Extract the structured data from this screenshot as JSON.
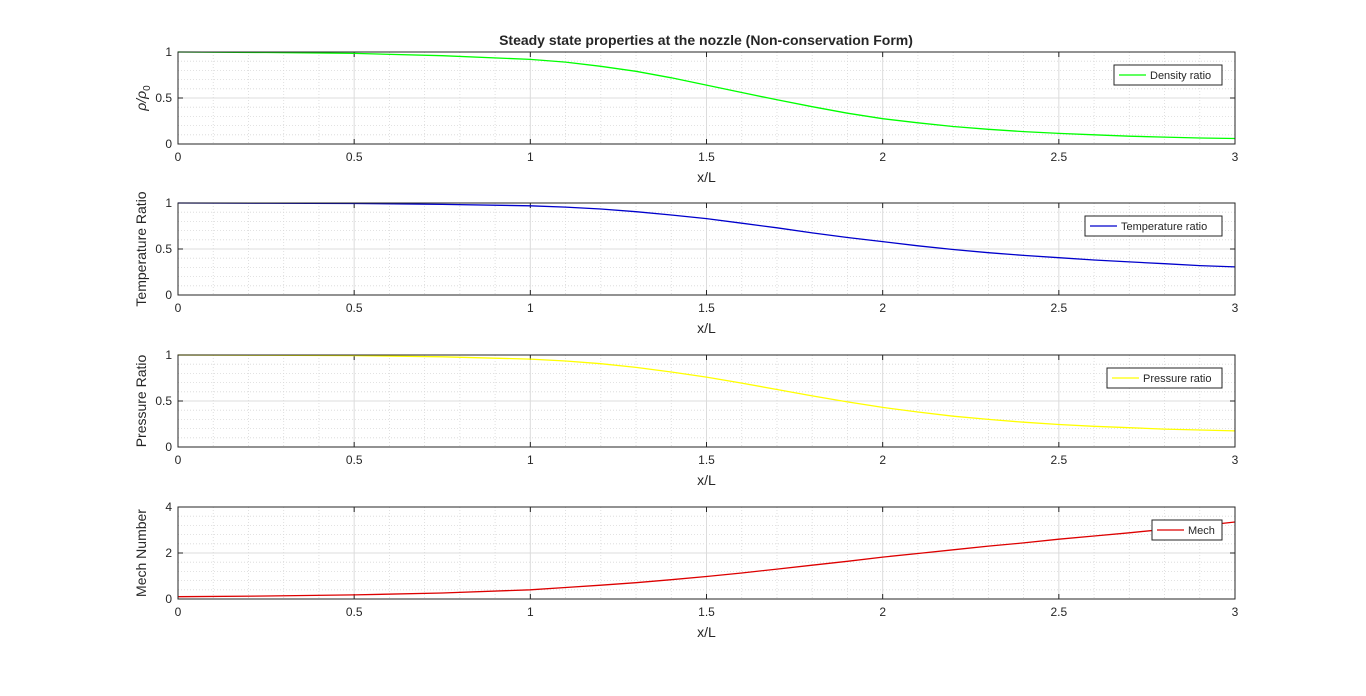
{
  "figure": {
    "title": "Steady state properties at the nozzle (Non-conservation Form)"
  },
  "chart_data": [
    {
      "type": "line",
      "xlabel": "x/L",
      "ylabel": "ρ/ρ",
      "ylabel_subscript": "0",
      "xlim": [
        0,
        3
      ],
      "ylim": [
        0,
        1
      ],
      "xticks": [
        "0",
        "0.5",
        "1",
        "1.5",
        "2",
        "2.5",
        "3"
      ],
      "yticks": [
        "0",
        "0.5",
        "1"
      ],
      "ytick_values": [
        0,
        0.5,
        1
      ],
      "grid": true,
      "minor_grid": true,
      "legend_position": "top-right",
      "series": [
        {
          "name": "Density ratio",
          "color": "#00ff00",
          "x": [
            0,
            0.25,
            0.5,
            0.75,
            1.0,
            1.1,
            1.2,
            1.3,
            1.4,
            1.5,
            1.6,
            1.7,
            1.8,
            1.9,
            2.0,
            2.1,
            2.2,
            2.3,
            2.4,
            2.5,
            2.6,
            2.7,
            2.8,
            2.9,
            3.0
          ],
          "y": [
            1.0,
            0.995,
            0.985,
            0.96,
            0.92,
            0.89,
            0.845,
            0.79,
            0.72,
            0.64,
            0.56,
            0.48,
            0.405,
            0.335,
            0.275,
            0.23,
            0.19,
            0.16,
            0.135,
            0.115,
            0.1,
            0.085,
            0.075,
            0.065,
            0.06
          ]
        }
      ]
    },
    {
      "type": "line",
      "xlabel": "x/L",
      "ylabel": "Temperature Ratio",
      "xlim": [
        0,
        3
      ],
      "ylim": [
        0,
        1
      ],
      "xticks": [
        "0",
        "0.5",
        "1",
        "1.5",
        "2",
        "2.5",
        "3"
      ],
      "yticks": [
        "0",
        "0.5",
        "1"
      ],
      "ytick_values": [
        0,
        0.5,
        1
      ],
      "grid": true,
      "minor_grid": true,
      "legend_position": "top-right",
      "series": [
        {
          "name": "Temperature ratio",
          "color": "#0000cc",
          "x": [
            0,
            0.25,
            0.5,
            0.75,
            1.0,
            1.1,
            1.2,
            1.3,
            1.4,
            1.5,
            1.6,
            1.7,
            1.8,
            1.9,
            2.0,
            2.1,
            2.2,
            2.3,
            2.4,
            2.5,
            2.6,
            2.7,
            2.8,
            2.9,
            3.0
          ],
          "y": [
            1.0,
            0.998,
            0.995,
            0.985,
            0.97,
            0.955,
            0.935,
            0.905,
            0.87,
            0.83,
            0.78,
            0.73,
            0.675,
            0.625,
            0.58,
            0.535,
            0.495,
            0.46,
            0.43,
            0.405,
            0.38,
            0.36,
            0.34,
            0.32,
            0.305
          ]
        }
      ]
    },
    {
      "type": "line",
      "xlabel": "x/L",
      "ylabel": "Pressure Ratio",
      "xlim": [
        0,
        3
      ],
      "ylim": [
        0,
        1
      ],
      "xticks": [
        "0",
        "0.5",
        "1",
        "1.5",
        "2",
        "2.5",
        "3"
      ],
      "yticks": [
        "0",
        "0.5",
        "1"
      ],
      "ytick_values": [
        0,
        0.5,
        1
      ],
      "grid": true,
      "minor_grid": true,
      "legend_position": "top-right",
      "series": [
        {
          "name": "Pressure ratio",
          "color": "#ffff00",
          "x": [
            0,
            0.25,
            0.5,
            0.75,
            1.0,
            1.1,
            1.2,
            1.3,
            1.4,
            1.5,
            1.6,
            1.7,
            1.8,
            1.9,
            2.0,
            2.1,
            2.2,
            2.3,
            2.4,
            2.5,
            2.6,
            2.7,
            2.8,
            2.9,
            3.0
          ],
          "y": [
            1.0,
            0.998,
            0.993,
            0.98,
            0.955,
            0.935,
            0.905,
            0.865,
            0.815,
            0.76,
            0.695,
            0.625,
            0.555,
            0.49,
            0.43,
            0.38,
            0.335,
            0.3,
            0.27,
            0.245,
            0.225,
            0.21,
            0.195,
            0.185,
            0.175
          ]
        }
      ]
    },
    {
      "type": "line",
      "xlabel": "x/L",
      "ylabel": "Mech Number",
      "xlim": [
        0,
        3
      ],
      "ylim": [
        0,
        4
      ],
      "xticks": [
        "0",
        "0.5",
        "1",
        "1.5",
        "2",
        "2.5",
        "3"
      ],
      "yticks": [
        "0",
        "2",
        "4"
      ],
      "ytick_values": [
        0,
        2,
        4
      ],
      "grid": true,
      "minor_grid": true,
      "legend_position": "top-right",
      "series": [
        {
          "name": "Mech",
          "color": "#dd0000",
          "x": [
            0,
            0.25,
            0.5,
            0.75,
            1.0,
            1.1,
            1.2,
            1.3,
            1.4,
            1.5,
            1.6,
            1.7,
            1.8,
            1.9,
            2.0,
            2.1,
            2.2,
            2.3,
            2.4,
            2.5,
            2.6,
            2.7,
            2.8,
            2.9,
            3.0
          ],
          "y": [
            0.1,
            0.13,
            0.18,
            0.26,
            0.4,
            0.5,
            0.6,
            0.71,
            0.84,
            0.98,
            1.13,
            1.3,
            1.47,
            1.64,
            1.82,
            1.98,
            2.14,
            2.3,
            2.44,
            2.6,
            2.74,
            2.88,
            3.03,
            3.18,
            3.35
          ]
        }
      ]
    }
  ]
}
